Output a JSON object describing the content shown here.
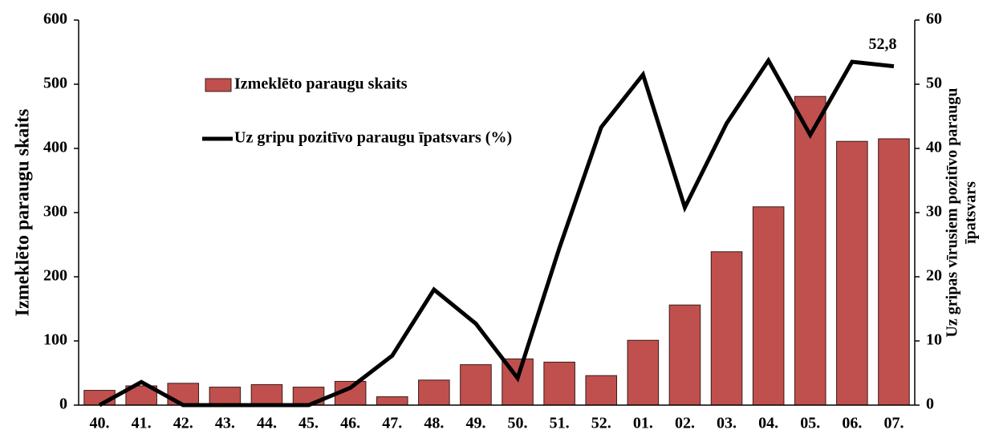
{
  "chart_data": {
    "type": "bar_line",
    "ylabel": "Izmeklēto paraugu skaits",
    "y2label": [
      "Uz gripas vīrusiem pozitīvo paraugu",
      "īpatsvars"
    ],
    "categories": [
      "40.",
      "41.",
      "42.",
      "43.",
      "44.",
      "45.",
      "46.",
      "47.",
      "48.",
      "49.",
      "50.",
      "51.",
      "52.",
      "01.",
      "02.",
      "03.",
      "04.",
      "05.",
      "06.",
      "07."
    ],
    "series": [
      {
        "name": "Izmeklēto paraugu skaits",
        "type": "bar",
        "color": "#c0504d",
        "values": [
          23,
          30,
          34,
          28,
          32,
          28,
          37,
          13,
          39,
          63,
          72,
          67,
          46,
          101,
          156,
          239,
          309,
          481,
          411,
          415
        ]
      },
      {
        "name": "Uz gripu pozitīvo paraugu īpatsvars (%)",
        "type": "line",
        "axis": "y2",
        "color": "#000000",
        "values": [
          0,
          3.6,
          0,
          0,
          0,
          0,
          2.7,
          7.7,
          18,
          12.7,
          4.2,
          24.5,
          43.3,
          51.5,
          30.8,
          43.9,
          53.7,
          42.1,
          53.5,
          52.8
        ],
        "value_labels": [
          null,
          null,
          null,
          null,
          null,
          null,
          null,
          null,
          null,
          null,
          null,
          null,
          null,
          null,
          null,
          null,
          null,
          null,
          null,
          "52,8"
        ]
      }
    ],
    "ylim": [
      0,
      600
    ],
    "yticks": [
      0,
      100,
      200,
      300,
      400,
      500,
      600
    ],
    "y2lim": [
      0,
      60
    ],
    "y2ticks": [
      0,
      10,
      20,
      30,
      40,
      50,
      60
    ]
  }
}
